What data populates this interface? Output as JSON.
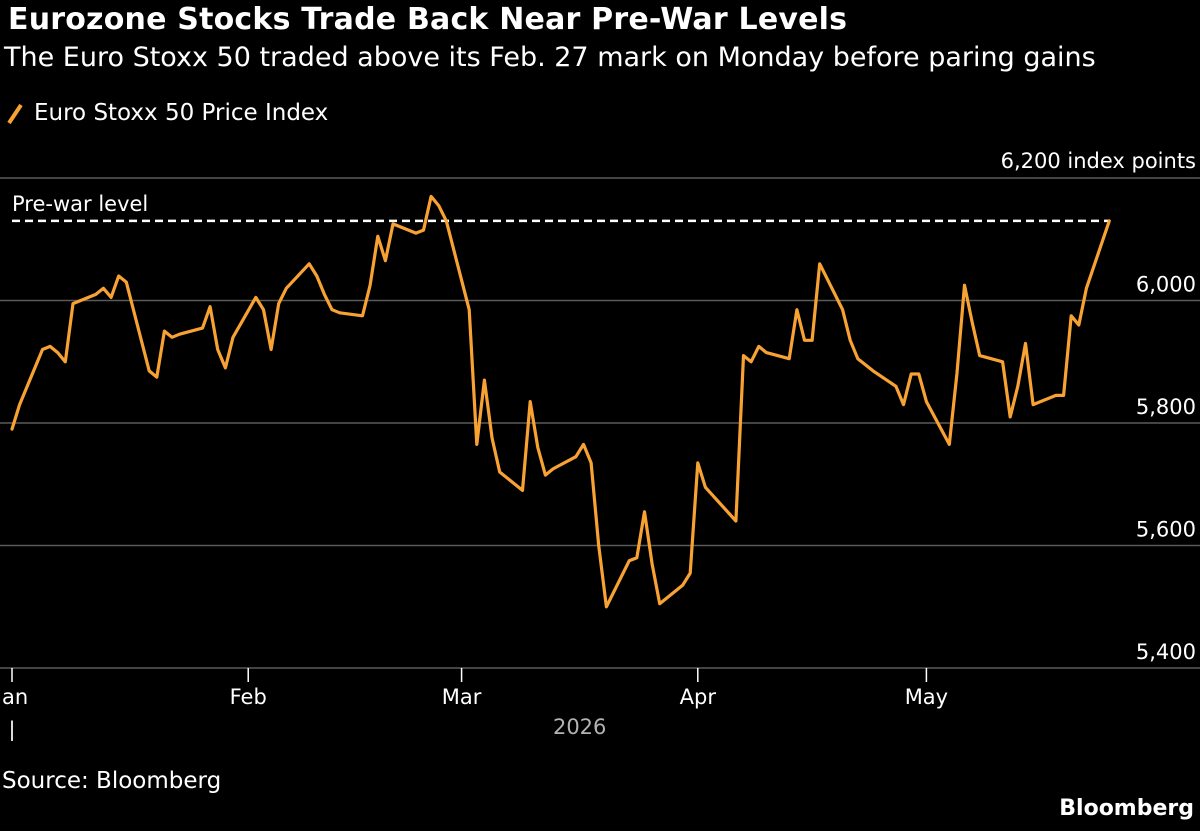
{
  "header": {
    "title": "Eurozone Stocks Trade Back Near Pre-War Levels",
    "subtitle": "The Euro Stoxx 50 traded above its Feb. 27 mark on Monday before paring gains"
  },
  "footer": {
    "source": "Source: Bloomberg",
    "brand": "Bloomberg"
  },
  "colors": {
    "background": "#000000",
    "series": "#f7a233",
    "grid": "#5a5a5a",
    "text": "#ffffff",
    "muted": "#b3b3b3"
  },
  "chart_data": {
    "type": "line",
    "title": "Eurozone Stocks Trade Back Near Pre-War Levels",
    "subtitle": "The Euro Stoxx 50 traded above its Feb. 27 mark on Monday before paring gains",
    "series": [
      {
        "name": "Euro Stoxx 50 Price Index",
        "color": "#f7a233",
        "points": [
          [
            "2026-01-01",
            5790
          ],
          [
            "2026-01-02",
            5830
          ],
          [
            "2026-01-05",
            5920
          ],
          [
            "2026-01-06",
            5925
          ],
          [
            "2026-01-07",
            5915
          ],
          [
            "2026-01-08",
            5900
          ],
          [
            "2026-01-09",
            5995
          ],
          [
            "2026-01-12",
            6010
          ],
          [
            "2026-01-13",
            6020
          ],
          [
            "2026-01-14",
            6005
          ],
          [
            "2026-01-15",
            6040
          ],
          [
            "2026-01-16",
            6030
          ],
          [
            "2026-01-19",
            5885
          ],
          [
            "2026-01-20",
            5875
          ],
          [
            "2026-01-21",
            5950
          ],
          [
            "2026-01-22",
            5940
          ],
          [
            "2026-01-23",
            5945
          ],
          [
            "2026-01-26",
            5955
          ],
          [
            "2026-01-27",
            5990
          ],
          [
            "2026-01-28",
            5920
          ],
          [
            "2026-01-29",
            5890
          ],
          [
            "2026-01-30",
            5940
          ],
          [
            "2026-02-02",
            6005
          ],
          [
            "2026-02-03",
            5985
          ],
          [
            "2026-02-04",
            5920
          ],
          [
            "2026-02-05",
            5995
          ],
          [
            "2026-02-06",
            6020
          ],
          [
            "2026-02-09",
            6060
          ],
          [
            "2026-02-10",
            6040
          ],
          [
            "2026-02-11",
            6010
          ],
          [
            "2026-02-12",
            5985
          ],
          [
            "2026-02-13",
            5980
          ],
          [
            "2026-02-16",
            5975
          ],
          [
            "2026-02-17",
            6025
          ],
          [
            "2026-02-18",
            6105
          ],
          [
            "2026-02-19",
            6065
          ],
          [
            "2026-02-20",
            6125
          ],
          [
            "2026-02-23",
            6110
          ],
          [
            "2026-02-24",
            6115
          ],
          [
            "2026-02-25",
            6170
          ],
          [
            "2026-02-26",
            6155
          ],
          [
            "2026-02-27",
            6130
          ],
          [
            "2026-03-02",
            5985
          ],
          [
            "2026-03-03",
            5765
          ],
          [
            "2026-03-04",
            5870
          ],
          [
            "2026-03-05",
            5775
          ],
          [
            "2026-03-06",
            5720
          ],
          [
            "2026-03-09",
            5690
          ],
          [
            "2026-03-10",
            5835
          ],
          [
            "2026-03-11",
            5760
          ],
          [
            "2026-03-12",
            5715
          ],
          [
            "2026-03-13",
            5725
          ],
          [
            "2026-03-16",
            5745
          ],
          [
            "2026-03-17",
            5765
          ],
          [
            "2026-03-18",
            5735
          ],
          [
            "2026-03-19",
            5600
          ],
          [
            "2026-03-20",
            5500
          ],
          [
            "2026-03-23",
            5575
          ],
          [
            "2026-03-24",
            5580
          ],
          [
            "2026-03-25",
            5655
          ],
          [
            "2026-03-26",
            5570
          ],
          [
            "2026-03-27",
            5505
          ],
          [
            "2026-03-30",
            5535
          ],
          [
            "2026-03-31",
            5555
          ],
          [
            "2026-04-01",
            5735
          ],
          [
            "2026-04-02",
            5695
          ],
          [
            "2026-04-06",
            5640
          ],
          [
            "2026-04-07",
            5910
          ],
          [
            "2026-04-08",
            5900
          ],
          [
            "2026-04-09",
            5925
          ],
          [
            "2026-04-10",
            5915
          ],
          [
            "2026-04-13",
            5905
          ],
          [
            "2026-04-14",
            5985
          ],
          [
            "2026-04-15",
            5935
          ],
          [
            "2026-04-16",
            5935
          ],
          [
            "2026-04-17",
            6060
          ],
          [
            "2026-04-20",
            5985
          ],
          [
            "2026-04-21",
            5935
          ],
          [
            "2026-04-22",
            5905
          ],
          [
            "2026-04-23",
            5895
          ],
          [
            "2026-04-24",
            5885
          ],
          [
            "2026-04-27",
            5860
          ],
          [
            "2026-04-28",
            5830
          ],
          [
            "2026-04-29",
            5880
          ],
          [
            "2026-04-30",
            5880
          ],
          [
            "2026-05-01",
            5835
          ],
          [
            "2026-05-04",
            5765
          ],
          [
            "2026-05-05",
            5880
          ],
          [
            "2026-05-06",
            6025
          ],
          [
            "2026-05-07",
            5965
          ],
          [
            "2026-05-08",
            5910
          ],
          [
            "2026-05-11",
            5900
          ],
          [
            "2026-05-12",
            5810
          ],
          [
            "2026-05-13",
            5860
          ],
          [
            "2026-05-14",
            5930
          ],
          [
            "2026-05-15",
            5830
          ],
          [
            "2026-05-18",
            5845
          ],
          [
            "2026-05-19",
            5845
          ],
          [
            "2026-05-20",
            5975
          ],
          [
            "2026-05-21",
            5960
          ],
          [
            "2026-05-22",
            6020
          ],
          [
            "2026-05-25",
            6130
          ]
        ]
      }
    ],
    "reference_line": {
      "label": "Pre-war level",
      "value": 6130,
      "style": "dashed",
      "color": "#ffffff"
    },
    "xlabel": "",
    "ylabel": "",
    "x_axis": {
      "type": "date",
      "range": [
        "2026-01-01",
        "2026-05-31"
      ],
      "ticks": [
        {
          "label": "Jan",
          "date": "2026-01-01"
        },
        {
          "label": "Feb",
          "date": "2026-02-01"
        },
        {
          "label": "Mar",
          "date": "2026-03-01"
        },
        {
          "label": "Apr",
          "date": "2026-04-01"
        },
        {
          "label": "May",
          "date": "2026-05-01"
        }
      ],
      "year_label": "2026",
      "year_marker": "|"
    },
    "y_axis": {
      "range": [
        5400,
        6200
      ],
      "unit_label": "6,200 index points",
      "ticks": [
        {
          "label": "6,000",
          "value": 6000
        },
        {
          "label": "5,800",
          "value": 5800
        },
        {
          "label": "5,600",
          "value": 5600
        },
        {
          "label": "5,400",
          "value": 5400
        }
      ],
      "label_side": "right"
    },
    "grid": "horizontal",
    "legend_position": "top-left"
  }
}
